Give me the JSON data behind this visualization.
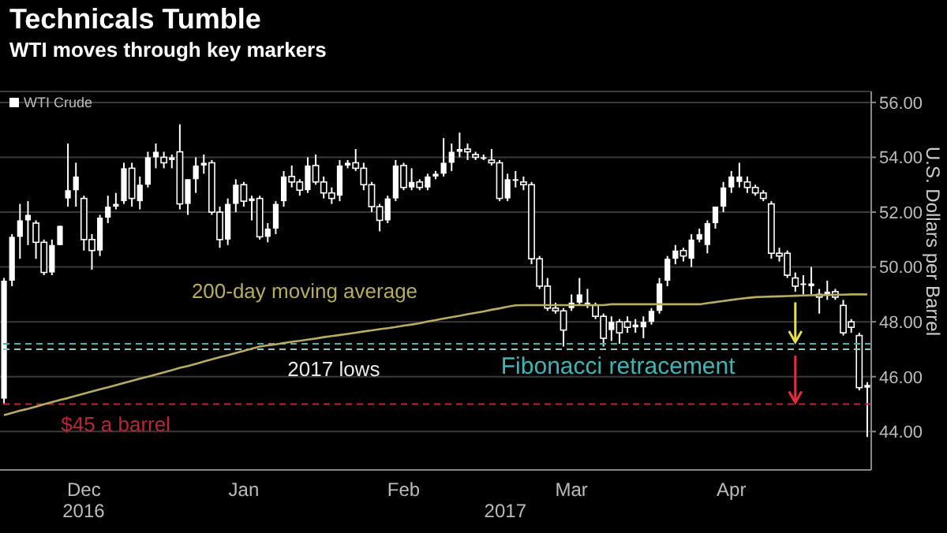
{
  "chart_data": {
    "type": "candlestick",
    "title": "Technicals Tumble",
    "subtitle": "WTI moves through key markers",
    "ylabel": "U.S. Dollars per Barrel",
    "categories": [
      null,
      null,
      null,
      null,
      null,
      null,
      null,
      null,
      null,
      null,
      "Dec",
      null,
      null,
      null,
      null,
      null,
      null,
      null,
      null,
      null,
      null,
      null,
      null,
      null,
      null,
      null,
      null,
      null,
      null,
      null,
      "Jan",
      null,
      null,
      null,
      null,
      null,
      null,
      null,
      null,
      null,
      null,
      null,
      null,
      null,
      null,
      null,
      null,
      null,
      null,
      null,
      "Feb",
      null,
      null,
      null,
      null,
      null,
      null,
      null,
      null,
      null,
      null,
      null,
      null,
      null,
      null,
      null,
      null,
      null,
      null,
      null,
      null,
      "Mar",
      null,
      null,
      null,
      null,
      null,
      null,
      null,
      null,
      null,
      null,
      null,
      null,
      null,
      null,
      null,
      null,
      null,
      null,
      null,
      "Apr",
      null,
      null,
      null,
      null,
      null,
      null,
      null,
      null,
      null,
      null,
      null,
      null,
      null,
      null,
      null,
      null,
      null
    ],
    "series": [
      {
        "name": "WTI Crude",
        "color": "#ffffff",
        "ohlc": [
          [
            45.2,
            49.6,
            45.0,
            49.5
          ],
          [
            49.5,
            51.2,
            49.3,
            51.1
          ],
          [
            51.1,
            52.3,
            50.3,
            51.7
          ],
          [
            51.7,
            52.4,
            50.8,
            51.9
          ],
          [
            51.6,
            51.7,
            50.3,
            50.9
          ],
          [
            50.9,
            51.0,
            49.7,
            49.8
          ],
          [
            49.8,
            51.0,
            49.7,
            50.8
          ],
          [
            50.8,
            51.5,
            50.8,
            51.5
          ],
          [
            52.5,
            54.5,
            52.2,
            52.8
          ],
          [
            52.8,
            53.8,
            52.2,
            53.3
          ],
          [
            52.5,
            52.6,
            50.6,
            51.0
          ],
          [
            51.0,
            51.2,
            49.9,
            50.6
          ],
          [
            50.6,
            51.9,
            50.4,
            51.8
          ],
          [
            51.8,
            52.6,
            51.6,
            52.2
          ],
          [
            52.2,
            52.7,
            52.1,
            52.3
          ],
          [
            52.4,
            53.8,
            52.3,
            53.6
          ],
          [
            53.6,
            53.8,
            52.2,
            52.5
          ],
          [
            52.4,
            53.3,
            52.1,
            53.0
          ],
          [
            53.0,
            54.2,
            52.9,
            54.0
          ],
          [
            54.0,
            54.5,
            53.6,
            54.2
          ],
          [
            54.0,
            54.2,
            53.6,
            53.8
          ],
          [
            53.9,
            54.1,
            53.6,
            54.0
          ],
          [
            54.2,
            55.2,
            52.1,
            52.3
          ],
          [
            52.3,
            53.2,
            51.9,
            53.2
          ],
          [
            53.2,
            54.0,
            52.7,
            53.7
          ],
          [
            53.7,
            54.1,
            53.4,
            53.8
          ],
          [
            53.8,
            53.9,
            51.9,
            52.0
          ],
          [
            52.0,
            52.2,
            50.7,
            51.0
          ],
          [
            51.0,
            52.5,
            50.8,
            52.3
          ],
          [
            52.3,
            53.2,
            52.0,
            53.0
          ],
          [
            53.0,
            53.1,
            52.2,
            52.4
          ],
          [
            52.4,
            52.6,
            51.7,
            52.5
          ],
          [
            52.5,
            52.6,
            51.0,
            51.1
          ],
          [
            51.1,
            51.6,
            50.9,
            51.4
          ],
          [
            51.4,
            52.4,
            51.2,
            52.3
          ],
          [
            52.4,
            53.5,
            52.2,
            53.3
          ],
          [
            53.3,
            53.7,
            52.9,
            53.1
          ],
          [
            53.1,
            53.2,
            52.6,
            52.8
          ],
          [
            52.8,
            54.0,
            52.7,
            53.7
          ],
          [
            53.7,
            54.1,
            53.0,
            53.1
          ],
          [
            53.1,
            53.3,
            52.5,
            52.7
          ],
          [
            52.7,
            52.9,
            52.3,
            52.5
          ],
          [
            52.6,
            53.9,
            52.4,
            53.7
          ],
          [
            53.7,
            53.9,
            53.6,
            53.8
          ],
          [
            53.8,
            54.3,
            53.5,
            53.6
          ],
          [
            53.6,
            53.8,
            52.8,
            53.0
          ],
          [
            53.0,
            53.1,
            52.0,
            52.2
          ],
          [
            52.2,
            52.3,
            51.3,
            51.7
          ],
          [
            51.7,
            52.6,
            51.6,
            52.5
          ],
          [
            52.5,
            53.9,
            52.4,
            53.7
          ],
          [
            53.7,
            53.8,
            52.8,
            52.9
          ],
          [
            52.9,
            53.6,
            52.8,
            53.1
          ],
          [
            53.1,
            53.2,
            52.8,
            52.9
          ],
          [
            52.9,
            53.4,
            52.8,
            53.3
          ],
          [
            53.3,
            53.5,
            53.2,
            53.4
          ],
          [
            53.4,
            54.7,
            53.3,
            53.8
          ],
          [
            53.8,
            54.5,
            53.5,
            54.2
          ],
          [
            54.2,
            54.9,
            54.0,
            54.3
          ],
          [
            54.3,
            54.5,
            53.9,
            54.2
          ],
          [
            54.1,
            54.2,
            53.9,
            54.0
          ],
          [
            54.0,
            54.1,
            53.9,
            54.0
          ],
          [
            53.9,
            54.3,
            53.7,
            53.8
          ],
          [
            53.8,
            53.9,
            52.4,
            52.5
          ],
          [
            52.5,
            53.4,
            52.4,
            53.2
          ],
          [
            53.2,
            53.5,
            52.9,
            53.2
          ],
          [
            53.1,
            53.3,
            52.8,
            53.0
          ],
          [
            53.0,
            53.1,
            50.1,
            50.3
          ],
          [
            50.3,
            50.4,
            49.2,
            49.3
          ],
          [
            49.3,
            49.6,
            48.4,
            48.5
          ],
          [
            48.5,
            48.7,
            48.3,
            48.4
          ],
          [
            48.4,
            48.5,
            47.1,
            47.7
          ],
          [
            48.5,
            49.0,
            48.4,
            48.7
          ],
          [
            48.7,
            49.6,
            48.6,
            49.0
          ],
          [
            48.7,
            49.2,
            48.5,
            48.7
          ],
          [
            48.6,
            48.7,
            48.1,
            48.2
          ],
          [
            48.2,
            48.3,
            47.1,
            47.4
          ],
          [
            47.7,
            48.2,
            47.3,
            48.0
          ],
          [
            48.0,
            48.1,
            47.2,
            47.6
          ],
          [
            48.0,
            48.2,
            47.6,
            47.8
          ],
          [
            47.8,
            48.1,
            47.6,
            47.9
          ],
          [
            47.8,
            48.2,
            47.4,
            48.0
          ],
          [
            48.0,
            48.5,
            47.9,
            48.4
          ],
          [
            48.4,
            49.6,
            48.3,
            49.4
          ],
          [
            49.5,
            50.4,
            49.3,
            50.3
          ],
          [
            50.3,
            50.8,
            50.1,
            50.6
          ],
          [
            50.6,
            50.7,
            50.2,
            50.4
          ],
          [
            50.3,
            51.2,
            50.0,
            51.0
          ],
          [
            51.0,
            51.4,
            50.9,
            51.2
          ],
          [
            50.8,
            51.7,
            50.5,
            51.6
          ],
          [
            51.6,
            52.2,
            51.4,
            52.2
          ],
          [
            52.2,
            53.1,
            52.0,
            52.9
          ],
          [
            52.9,
            53.5,
            52.7,
            53.3
          ],
          [
            53.1,
            53.8,
            52.9,
            53.3
          ],
          [
            53.1,
            53.3,
            52.7,
            52.9
          ],
          [
            52.9,
            53.0,
            52.6,
            52.7
          ],
          [
            52.7,
            52.8,
            52.4,
            52.5
          ],
          [
            52.3,
            52.4,
            50.3,
            50.5
          ],
          [
            50.5,
            50.7,
            50.2,
            50.4
          ],
          [
            50.5,
            50.6,
            49.6,
            49.7
          ],
          [
            49.6,
            49.8,
            49.1,
            49.3
          ],
          [
            49.4,
            49.7,
            49.0,
            49.4
          ],
          [
            49.3,
            50.0,
            49.0,
            49.4
          ],
          [
            49.0,
            49.2,
            48.3,
            48.9
          ],
          [
            49.0,
            49.5,
            48.8,
            49.1
          ],
          [
            49.1,
            49.2,
            48.8,
            48.9
          ],
          [
            48.6,
            48.8,
            47.5,
            47.6
          ],
          [
            48.0,
            48.1,
            47.6,
            47.8
          ],
          [
            47.5,
            47.6,
            45.5,
            45.6
          ],
          [
            45.6,
            45.8,
            43.8,
            45.7
          ]
        ]
      },
      {
        "name": "200-day moving average",
        "type": "line",
        "color": "#b8ac62",
        "values": [
          44.6,
          44.68,
          44.76,
          44.83,
          44.91,
          44.99,
          45.07,
          45.15,
          45.22,
          45.3,
          45.38,
          45.46,
          45.54,
          45.61,
          45.69,
          45.77,
          45.85,
          45.93,
          46.0,
          46.08,
          46.16,
          46.24,
          46.32,
          46.39,
          46.47,
          46.55,
          46.63,
          46.71,
          46.78,
          46.86,
          46.94,
          47.02,
          47.1,
          47.14,
          47.18,
          47.23,
          47.27,
          47.31,
          47.35,
          47.39,
          47.44,
          47.48,
          47.52,
          47.56,
          47.6,
          47.65,
          47.69,
          47.73,
          47.77,
          47.81,
          47.86,
          47.9,
          47.95,
          48.01,
          48.06,
          48.12,
          48.17,
          48.22,
          48.28,
          48.33,
          48.38,
          48.44,
          48.49,
          48.55,
          48.6,
          48.61,
          48.61,
          48.61,
          48.61,
          48.61,
          48.61,
          48.61,
          48.61,
          48.61,
          48.61,
          48.61,
          48.64,
          48.64,
          48.64,
          48.64,
          48.64,
          48.64,
          48.64,
          48.64,
          48.64,
          48.64,
          48.64,
          48.64,
          48.68,
          48.72,
          48.76,
          48.8,
          48.84,
          48.87,
          48.9,
          48.91,
          48.92,
          48.93,
          48.94,
          48.95,
          48.96,
          48.97,
          48.98,
          48.98,
          48.99,
          48.99,
          49.0,
          49.0,
          49.0
        ]
      }
    ],
    "ylim": [
      42.6,
      56.4
    ],
    "yticks": [
      {
        "value": 44,
        "label": "44.00"
      },
      {
        "value": 46,
        "label": "46.00"
      },
      {
        "value": 48,
        "label": "48.00"
      },
      {
        "value": 50,
        "label": "50.00"
      },
      {
        "value": 52,
        "label": "52.00"
      },
      {
        "value": 54,
        "label": "54.00"
      },
      {
        "value": 56,
        "label": "56.00"
      }
    ],
    "ref_lines": [
      {
        "axis": "y",
        "value": 45,
        "label": "$45 a barrel",
        "color": "#b5283a",
        "line_style": "dashed"
      },
      {
        "axis": "y",
        "value": 47,
        "label": "2017 lows",
        "color": "#9cc4c4",
        "line_style": "dashed"
      },
      {
        "axis": "y",
        "value": 47.2,
        "label": "Fibonacci retracement",
        "color": "#3fb4b4",
        "line_style": "dashed"
      }
    ],
    "annotations": [
      "2016",
      "2017"
    ],
    "grid": "y",
    "legend": "top left"
  }
}
